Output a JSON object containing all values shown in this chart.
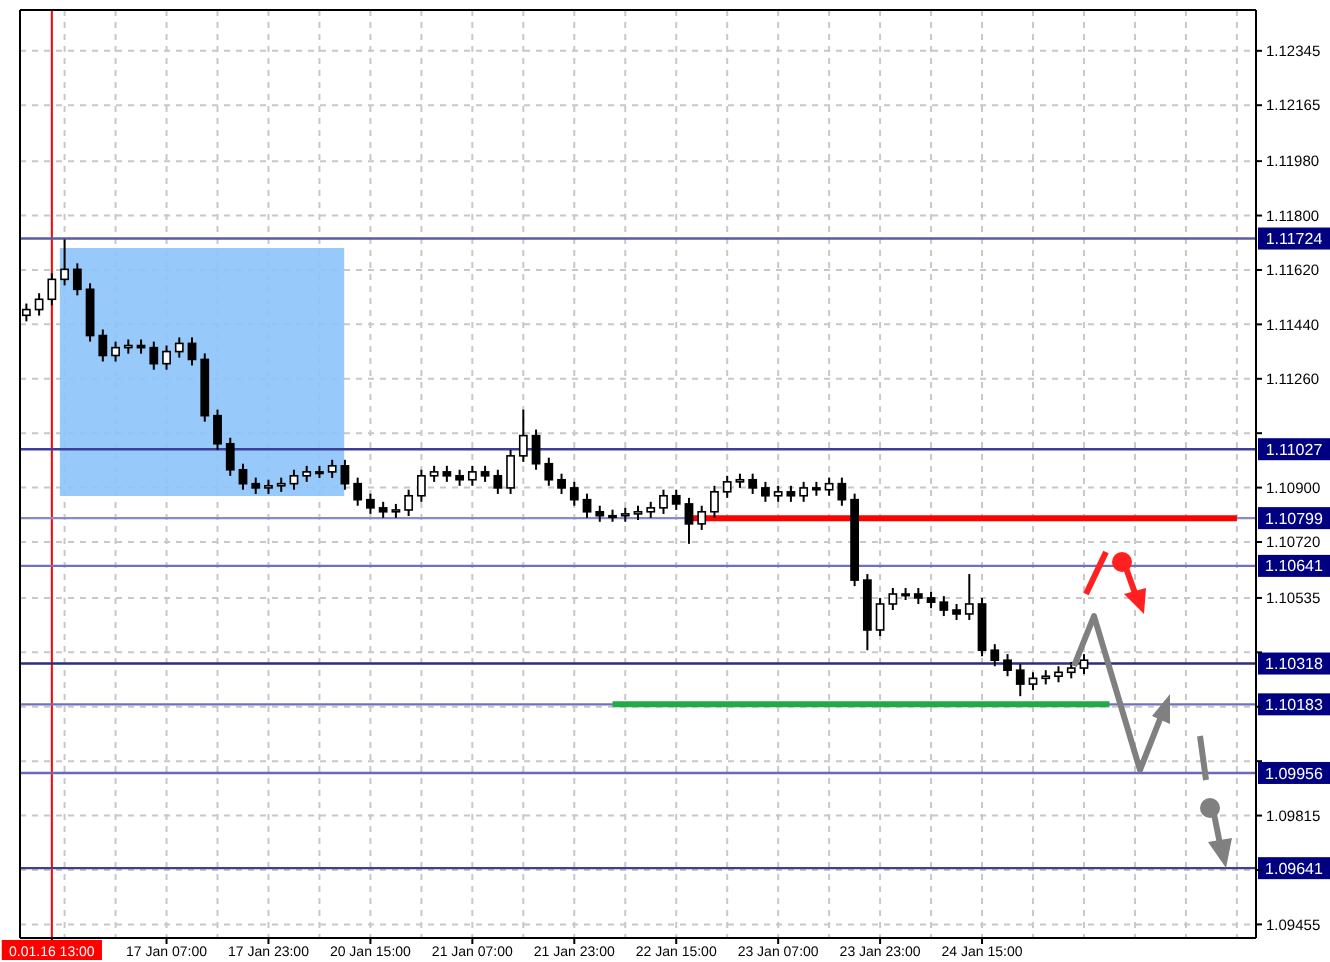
{
  "chart_data": {
    "type": "candlestick",
    "categories": [
      null,
      null,
      "0.01.16 13:00",
      null,
      null,
      null,
      null,
      null,
      null,
      null,
      null,
      "17 Jan 07:00",
      null,
      null,
      null,
      null,
      null,
      null,
      null,
      "17 Jan 23:00",
      null,
      null,
      null,
      null,
      null,
      null,
      null,
      "20 Jan 15:00",
      null,
      null,
      null,
      null,
      null,
      null,
      null,
      "21 Jan 07:00",
      null,
      null,
      null,
      null,
      null,
      null,
      null,
      "21 Jan 23:00",
      null,
      null,
      null,
      null,
      null,
      null,
      null,
      "22 Jan 15:00",
      null,
      null,
      null,
      null,
      null,
      null,
      null,
      "23 Jan 07:00",
      null,
      null,
      null,
      null,
      null,
      null,
      null,
      "23 Jan 23:00",
      null,
      null,
      null,
      null,
      null,
      null,
      null,
      "24 Jan 15:00",
      null,
      null,
      null,
      null,
      null,
      null,
      null,
      null,
      null,
      null,
      null,
      null,
      null,
      null,
      null,
      null,
      null,
      null,
      null,
      null,
      null
    ],
    "ohlc": [
      [
        1.1147,
        1.11509,
        1.1145,
        1.11489
      ],
      [
        1.11489,
        1.11543,
        1.11469,
        1.11523
      ],
      [
        1.11523,
        1.11609,
        1.11503,
        1.11589
      ],
      [
        1.11589,
        1.11721,
        1.11569,
        1.11622
      ],
      [
        1.11622,
        1.11642,
        1.11536,
        1.11556
      ],
      [
        1.11556,
        1.11576,
        1.11383,
        1.11403
      ],
      [
        1.11403,
        1.11423,
        1.11317,
        1.11337
      ],
      [
        1.11337,
        1.11383,
        1.11317,
        1.11363
      ],
      [
        1.11363,
        1.1139,
        1.11343,
        1.1137
      ],
      [
        1.1137,
        1.1139,
        1.11343,
        1.11363
      ],
      [
        1.11363,
        1.11383,
        1.1129,
        1.1131
      ],
      [
        1.1131,
        1.1137,
        1.1129,
        1.1135
      ],
      [
        1.1135,
        1.11397,
        1.1133,
        1.11377
      ],
      [
        1.11377,
        1.11397,
        1.11304,
        1.11324
      ],
      [
        1.11324,
        1.11344,
        1.11118,
        1.11138
      ],
      [
        1.11138,
        1.11158,
        1.11025,
        1.11045
      ],
      [
        1.11045,
        1.11065,
        1.10939,
        1.10959
      ],
      [
        1.10959,
        1.10979,
        1.10893,
        1.10913
      ],
      [
        1.10913,
        1.10933,
        1.10879,
        1.10899
      ],
      [
        1.10899,
        1.10926,
        1.10879,
        1.10906
      ],
      [
        1.10906,
        1.10933,
        1.10886,
        1.10913
      ],
      [
        1.10913,
        1.10959,
        1.10893,
        1.10939
      ],
      [
        1.10939,
        1.10972,
        1.10919,
        1.10952
      ],
      [
        1.10952,
        1.10972,
        1.10932,
        1.10952
      ],
      [
        1.10952,
        1.10992,
        1.10932,
        1.10972
      ],
      [
        1.10972,
        1.10992,
        1.10893,
        1.10913
      ],
      [
        1.10913,
        1.10933,
        1.1084,
        1.1086
      ],
      [
        1.1086,
        1.1088,
        1.10813,
        1.10833
      ],
      [
        1.10833,
        1.10853,
        1.108,
        1.1082
      ],
      [
        1.1082,
        1.10846,
        1.108,
        1.10826
      ],
      [
        1.10826,
        1.10893,
        1.10806,
        1.10873
      ],
      [
        1.10873,
        1.10959,
        1.10853,
        1.10939
      ],
      [
        1.10939,
        1.10972,
        1.10919,
        1.10952
      ],
      [
        1.10952,
        1.10972,
        1.10919,
        1.10939
      ],
      [
        1.10939,
        1.10959,
        1.10906,
        1.10926
      ],
      [
        1.10926,
        1.10972,
        1.10906,
        1.10952
      ],
      [
        1.10952,
        1.10972,
        1.10919,
        1.10939
      ],
      [
        1.10939,
        1.10959,
        1.10879,
        1.10899
      ],
      [
        1.10899,
        1.11025,
        1.10879,
        1.11005
      ],
      [
        1.11005,
        1.11158,
        1.10985,
        1.11072
      ],
      [
        1.11072,
        1.11092,
        1.10959,
        1.10979
      ],
      [
        1.10979,
        1.10999,
        1.10906,
        1.10926
      ],
      [
        1.10926,
        1.10946,
        1.10879,
        1.10899
      ],
      [
        1.10899,
        1.10919,
        1.1084,
        1.1086
      ],
      [
        1.1086,
        1.1088,
        1.108,
        1.1082
      ],
      [
        1.1082,
        1.1084,
        1.10787,
        1.10807
      ],
      [
        1.10807,
        1.10827,
        1.10787,
        1.10807
      ],
      [
        1.10807,
        1.10833,
        1.10787,
        1.10813
      ],
      [
        1.10813,
        1.1084,
        1.10793,
        1.1082
      ],
      [
        1.1082,
        1.10853,
        1.108,
        1.10833
      ],
      [
        1.10833,
        1.10893,
        1.10813,
        1.10873
      ],
      [
        1.10873,
        1.10893,
        1.10826,
        1.10846
      ],
      [
        1.10846,
        1.10866,
        1.10714,
        1.1078
      ],
      [
        1.1078,
        1.1084,
        1.1076,
        1.1082
      ],
      [
        1.1082,
        1.10906,
        1.108,
        1.10886
      ],
      [
        1.10886,
        1.10939,
        1.10866,
        1.10919
      ],
      [
        1.10919,
        1.10946,
        1.10899,
        1.10926
      ],
      [
        1.10926,
        1.10946,
        1.10879,
        1.10899
      ],
      [
        1.10899,
        1.10919,
        1.10853,
        1.10873
      ],
      [
        1.10873,
        1.10906,
        1.10853,
        1.10886
      ],
      [
        1.10886,
        1.10906,
        1.10853,
        1.10873
      ],
      [
        1.10873,
        1.10919,
        1.10853,
        1.10899
      ],
      [
        1.10899,
        1.10919,
        1.10873,
        1.10893
      ],
      [
        1.10893,
        1.10933,
        1.10873,
        1.10913
      ],
      [
        1.10913,
        1.10933,
        1.1084,
        1.1086
      ],
      [
        1.1086,
        1.1088,
        1.10574,
        1.10594
      ],
      [
        1.10594,
        1.10614,
        1.10362,
        1.10429
      ],
      [
        1.10429,
        1.10535,
        1.10409,
        1.10515
      ],
      [
        1.10515,
        1.10568,
        1.10495,
        1.10548
      ],
      [
        1.10548,
        1.10568,
        1.10528,
        1.10548
      ],
      [
        1.10548,
        1.10568,
        1.10515,
        1.10535
      ],
      [
        1.10535,
        1.10555,
        1.10501,
        1.10521
      ],
      [
        1.10521,
        1.10541,
        1.10475,
        1.10495
      ],
      [
        1.10495,
        1.10515,
        1.10462,
        1.10482
      ],
      [
        1.10482,
        1.10614,
        1.10462,
        1.10515
      ],
      [
        1.10515,
        1.10535,
        1.10342,
        1.10362
      ],
      [
        1.10362,
        1.10382,
        1.10309,
        1.10329
      ],
      [
        1.10329,
        1.10349,
        1.10276,
        1.10296
      ],
      [
        1.10296,
        1.10316,
        1.1021,
        1.1025
      ],
      [
        1.1025,
        1.10289,
        1.1023,
        1.10269
      ],
      [
        1.10269,
        1.10296,
        1.10249,
        1.10276
      ],
      [
        1.10276,
        1.10309,
        1.10256,
        1.10289
      ],
      [
        1.10289,
        1.10323,
        1.10269,
        1.10303
      ],
      [
        1.10303,
        1.10349,
        1.10283,
        1.10329
      ],
      null,
      null,
      null,
      null,
      null,
      null,
      null,
      null,
      null,
      null,
      null,
      null,
      null
    ],
    "series": [
      {
        "type": "line",
        "color": "#ff0000",
        "values": [
          null,
          null,
          null,
          null,
          null,
          null,
          null,
          null,
          null,
          null,
          null,
          null,
          null,
          null,
          null,
          null,
          null,
          null,
          null,
          null,
          null,
          null,
          null,
          null,
          null,
          null,
          null,
          null,
          null,
          null,
          null,
          null,
          null,
          null,
          null,
          null,
          null,
          null,
          null,
          null,
          null,
          null,
          null,
          null,
          null,
          null,
          null,
          null,
          null,
          null,
          null,
          null,
          1.10799,
          1.10799,
          1.10799,
          1.10799,
          1.10799,
          1.10799,
          1.10799,
          1.10799,
          1.10799,
          1.10799,
          1.10799,
          1.10799,
          1.10799,
          1.10799,
          1.10799,
          1.10799,
          1.10799,
          1.10799,
          1.10799,
          1.10799,
          1.10799,
          1.10799,
          1.10799,
          1.10799,
          1.10799,
          1.10799,
          1.10799,
          1.10799,
          1.10799,
          1.10799,
          1.10799,
          1.10799,
          1.10799,
          1.10799,
          1.10799,
          1.10799,
          1.10799,
          1.10799,
          1.10799,
          1.10799,
          1.10799,
          1.10799,
          1.10799,
          1.10799,
          null
        ]
      },
      {
        "type": "line",
        "color": "#22aa44",
        "values": [
          null,
          null,
          null,
          null,
          null,
          null,
          null,
          null,
          null,
          null,
          null,
          null,
          null,
          null,
          null,
          null,
          null,
          null,
          null,
          null,
          null,
          null,
          null,
          null,
          null,
          null,
          null,
          null,
          null,
          null,
          null,
          null,
          null,
          null,
          null,
          null,
          null,
          null,
          null,
          null,
          null,
          null,
          null,
          null,
          null,
          null,
          1.10183,
          1.10183,
          1.10183,
          1.10183,
          1.10183,
          1.10183,
          1.10183,
          1.10183,
          1.10183,
          1.10183,
          1.10183,
          1.10183,
          1.10183,
          1.10183,
          1.10183,
          1.10183,
          1.10183,
          1.10183,
          1.10183,
          1.10183,
          1.10183,
          1.10183,
          1.10183,
          1.10183,
          1.10183,
          1.10183,
          1.10183,
          1.10183,
          1.10183,
          1.10183,
          1.10183,
          1.10183,
          1.10183,
          1.10183,
          1.10183,
          1.10183,
          1.10183,
          1.10183,
          1.10183,
          1.10183,
          null,
          null,
          null,
          null,
          null,
          null,
          null,
          null,
          null,
          null,
          null
        ]
      }
    ],
    "ylim": [
      1.0941,
      1.1248
    ],
    "yticks": [
      1.09455,
      {
        "value": 1.09635,
        "label": null
      },
      1.09815,
      {
        "value": 1.09995,
        "label": null
      },
      {
        "value": 1.10175,
        "label": null
      },
      {
        "value": 1.10355,
        "label": null
      },
      1.10535,
      {
        "value": 1.1072,
        "label": "1.10720"
      },
      {
        "value": 1.109,
        "label": "1.10900"
      },
      {
        "value": 1.1108,
        "label": null
      },
      {
        "value": 1.1126,
        "label": "1.11260"
      },
      {
        "value": 1.1144,
        "label": "1.11440"
      },
      {
        "value": 1.1162,
        "label": "1.11620"
      },
      {
        "value": 1.118,
        "label": "1.11800"
      },
      {
        "value": 1.1198,
        "label": "1.11980"
      },
      1.12165,
      1.12345
    ],
    "ref_lines": [
      {
        "axis": "x",
        "value": "0.01.16 13:00",
        "color": "#ff0000"
      },
      {
        "axis": "y",
        "value": 1.11724,
        "label": "1.11724",
        "color": "#5a5aa8"
      },
      {
        "axis": "y",
        "value": 1.11027,
        "label": "1.11027",
        "color": "#3d3d9a"
      },
      {
        "axis": "y",
        "value": 1.10799,
        "label": "1.10799",
        "color": "#8888cc"
      },
      {
        "axis": "y",
        "value": 1.10641,
        "label": "1.10641",
        "color": "#7070c0"
      },
      {
        "axis": "y",
        "value": 1.10318,
        "label": "1.10318",
        "color": "#2e2e7a"
      },
      {
        "axis": "y",
        "value": 1.10183,
        "label": "1.10183",
        "color": "#7070c0"
      },
      {
        "axis": "y",
        "value": 1.09956,
        "label": "1.09956",
        "color": "#6a6ab8"
      },
      {
        "axis": "y",
        "value": 1.09641,
        "label": "1.09641",
        "color": "#3d3d9a"
      }
    ],
    "grid": true
  }
}
